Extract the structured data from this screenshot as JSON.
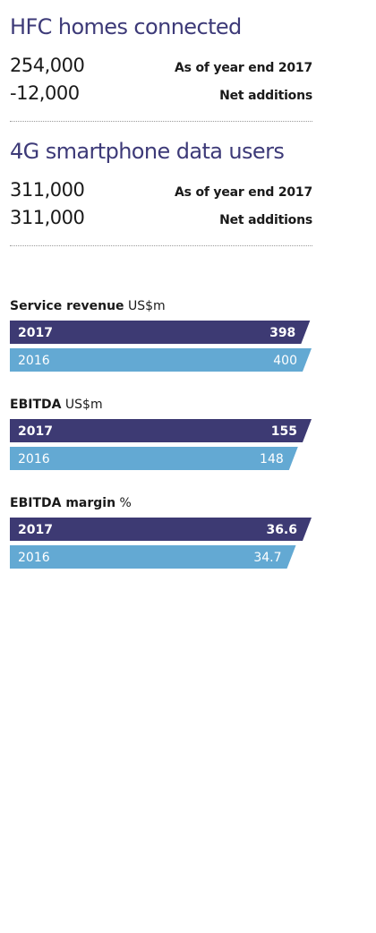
{
  "kpis": [
    {
      "title": "HFC homes connected",
      "rows": [
        {
          "value": "254,000",
          "label": "As of year end 2017"
        },
        {
          "value": "-12,000",
          "label": "Net additions"
        }
      ]
    },
    {
      "title": "4G smartphone data users",
      "rows": [
        {
          "value": "311,000",
          "label": "As of year end 2017"
        },
        {
          "value": "311,000",
          "label": "Net additions"
        }
      ]
    }
  ],
  "colors": {
    "current": "#3d3a73",
    "prior": "#63a9d3",
    "title": "#3d3a78"
  },
  "chart_data": [
    {
      "type": "bar",
      "title": "Service revenue",
      "unit": "US$m",
      "categories": [
        "2017",
        "2016"
      ],
      "values": [
        398,
        400
      ],
      "value_labels": [
        "398",
        "400"
      ],
      "xlim": [
        0,
        400
      ]
    },
    {
      "type": "bar",
      "title": "EBITDA",
      "unit": "US$m",
      "categories": [
        "2017",
        "2016"
      ],
      "values": [
        155,
        148
      ],
      "value_labels": [
        "155",
        "148"
      ],
      "xlim": [
        0,
        155
      ]
    },
    {
      "type": "bar",
      "title": "EBITDA margin",
      "unit": "%",
      "categories": [
        "2017",
        "2016"
      ],
      "values": [
        36.6,
        34.7
      ],
      "value_labels": [
        "36.6",
        "34.7"
      ],
      "xlim": [
        0,
        36.6
      ]
    }
  ]
}
